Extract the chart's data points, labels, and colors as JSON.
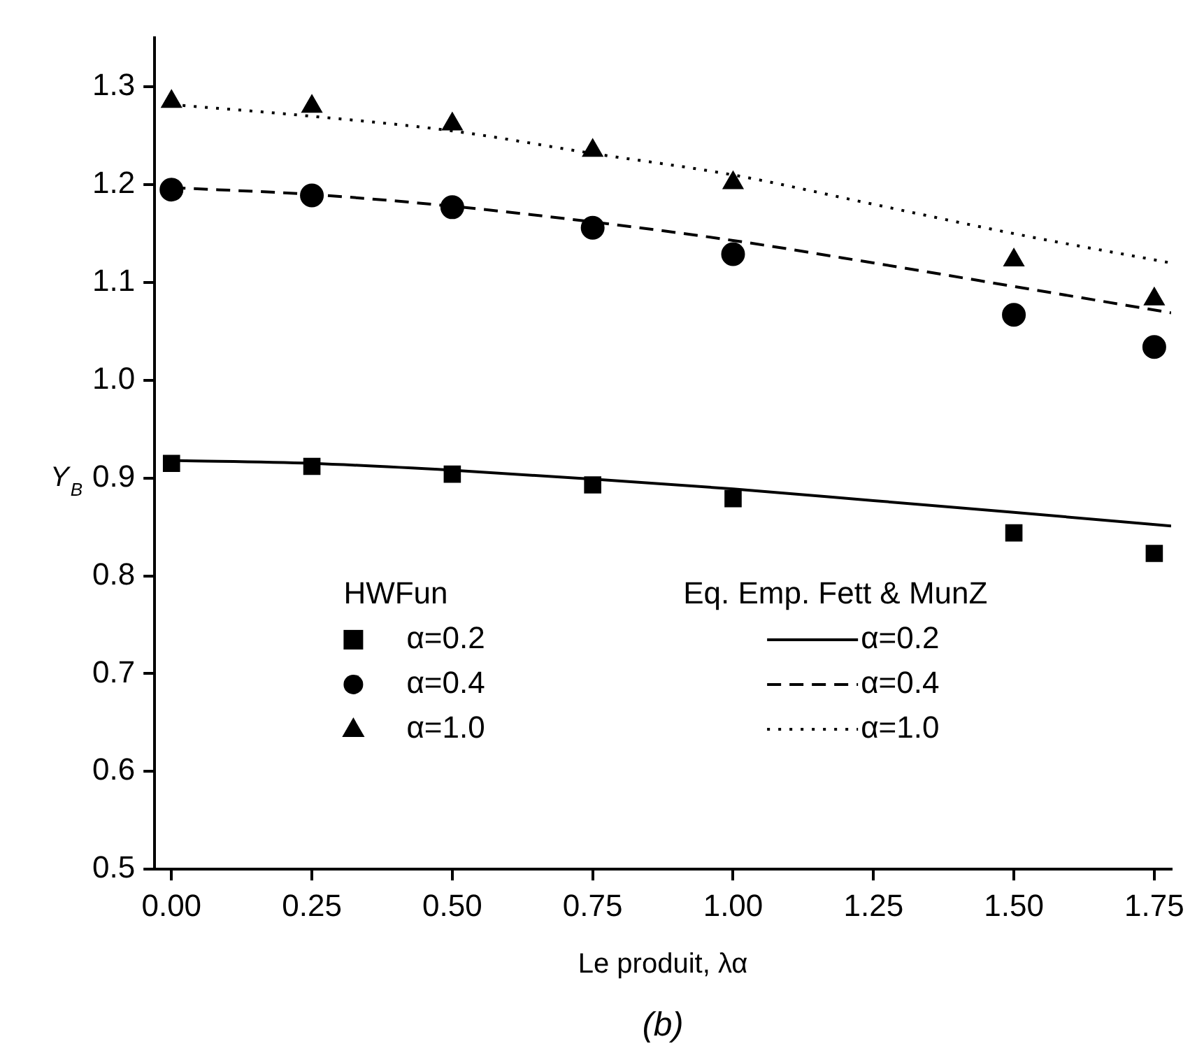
{
  "chart_data": {
    "type": "scatter",
    "xlabel": "Le produit, λα",
    "ylabel": "Y$_{B}$",
    "legend_title": "HWFun",
    "annotations": [
      "Eq. Emp. Fett & MunZ",
      "(b)"
    ],
    "xlim": [
      -0.03,
      1.78
    ],
    "xticks": [
      {
        "value": 0,
        "label": "0.00"
      },
      0.25,
      {
        "value": 0.5,
        "label": "0.50"
      },
      0.75,
      {
        "value": 1,
        "label": "1.00"
      },
      1.25,
      {
        "value": 1.5,
        "label": "1.50"
      },
      1.75
    ],
    "ylim": [
      0.5,
      1.35
    ],
    "yticks": [
      0.5,
      0.6,
      0.7,
      0.8,
      0.9,
      {
        "value": 1,
        "label": "1.0"
      },
      1.1,
      1.2,
      1.3
    ],
    "grid": false,
    "legend": "bottom",
    "x": [
      0,
      0.25,
      0.5,
      0.75,
      1,
      1.5,
      1.75
    ],
    "series": [
      {
        "name": "α=0.2",
        "marker": "square",
        "color": "#000000",
        "values": [
          0.915,
          0.912,
          0.904,
          0.893,
          0.879,
          0.844,
          0.823
        ]
      },
      {
        "name": "α=0.4",
        "marker": "circle",
        "color": "#000000",
        "values": [
          1.195,
          1.189,
          1.177,
          1.156,
          1.129,
          1.067,
          1.034
        ]
      },
      {
        "name": "α=1.0",
        "marker": "triangle",
        "color": "#000000",
        "values": [
          1.285,
          1.28,
          1.262,
          1.235,
          1.202,
          1.123,
          1.083
        ]
      },
      {
        "name": "α=0.2",
        "type": "line",
        "line_style": "solid",
        "color": "#000000",
        "x": [
          0,
          0.25,
          0.5,
          0.75,
          1,
          1.25,
          1.5,
          1.78
        ],
        "values": [
          0.918,
          0.915,
          0.908,
          0.899,
          0.889,
          0.877,
          0.865,
          0.851
        ]
      },
      {
        "name": "α=0.4",
        "type": "line",
        "line_style": "dashed",
        "color": "#000000",
        "x": [
          0,
          0.25,
          0.5,
          0.75,
          1,
          1.25,
          1.5,
          1.78
        ],
        "values": [
          1.197,
          1.19,
          1.178,
          1.162,
          1.143,
          1.12,
          1.096,
          1.069
        ]
      },
      {
        "name": "α=1.0",
        "type": "line",
        "line_style": "dotted",
        "color": "#000000",
        "x": [
          0,
          0.25,
          0.5,
          0.75,
          1,
          1.25,
          1.5,
          1.78
        ],
        "values": [
          1.282,
          1.27,
          1.255,
          1.232,
          1.21,
          1.18,
          1.15,
          1.12
        ]
      }
    ]
  }
}
